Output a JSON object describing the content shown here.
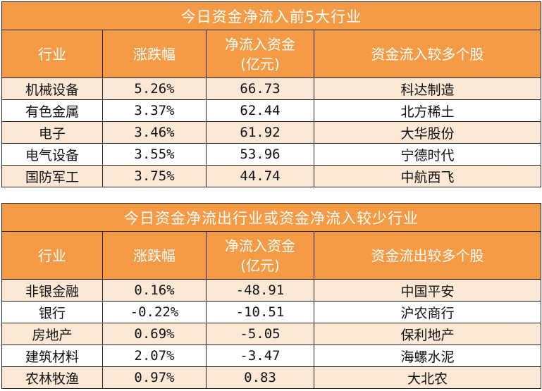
{
  "table_inflow": {
    "title": "今日资金净流入前5大行业",
    "headers": [
      "行业",
      "涨跌幅",
      "净流入资金",
      "(亿元)",
      "资金流入较多个股"
    ],
    "rows": [
      {
        "industry": "机械设备",
        "change": "5.26%",
        "net": "66.73",
        "stock": "科达制造"
      },
      {
        "industry": "有色金属",
        "change": "3.37%",
        "net": "62.44",
        "stock": "北方稀土"
      },
      {
        "industry": "电子",
        "change": "3.46%",
        "net": "61.92",
        "stock": "大华股份"
      },
      {
        "industry": "电气设备",
        "change": "3.55%",
        "net": "53.96",
        "stock": "宁德时代"
      },
      {
        "industry": "国防军工",
        "change": "3.75%",
        "net": "44.74",
        "stock": "中航西飞"
      }
    ]
  },
  "table_outflow": {
    "title": "今日资金净流出行业或资金净流入较少行业",
    "headers": [
      "行业",
      "涨跌幅",
      "净流入资金",
      "(亿元)",
      "资金流出较多个股"
    ],
    "rows": [
      {
        "industry": "非银金融",
        "change": "0.16%",
        "net": "-48.91",
        "stock": "中国平安"
      },
      {
        "industry": "银行",
        "change": "-0.22%",
        "net": "-10.51",
        "stock": "沪农商行"
      },
      {
        "industry": "房地产",
        "change": "0.69%",
        "net": "-5.05",
        "stock": "保利地产"
      },
      {
        "industry": "建筑材料",
        "change": "2.07%",
        "net": "-3.47",
        "stock": "海螺水泥"
      },
      {
        "industry": "农林牧渔",
        "change": "0.97%",
        "net": "0.83",
        "stock": "大北农"
      }
    ]
  }
}
